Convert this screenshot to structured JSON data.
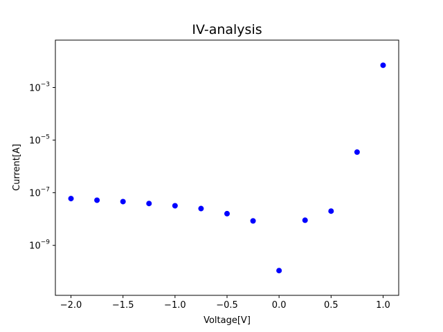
{
  "chart_data": {
    "type": "scatter",
    "title": "IV-analysis",
    "xlabel": "Voltage[V]",
    "ylabel": "Current[A]",
    "xlim": [
      -2.15,
      1.15
    ],
    "ylim_log10": [
      -10.9,
      -1.2
    ],
    "yscale": "log",
    "grid": false,
    "marker_color": "#0000ff",
    "x_ticks": [
      "-2.0",
      "-1.5",
      "-1.0",
      "-0.5",
      "0.0",
      "0.5",
      "1.0"
    ],
    "x_tick_values": [
      -2.0,
      -1.5,
      -1.0,
      -0.5,
      0.0,
      0.5,
      1.0
    ],
    "y_tick_exponents": [
      -9,
      -7,
      -5,
      -3
    ],
    "y_tick_base": "10",
    "series": [
      {
        "x": [
          -2.0,
          -1.75,
          -1.5,
          -1.25,
          -1.0,
          -0.75,
          -0.5,
          -0.25,
          0.0,
          0.25,
          0.5,
          0.75,
          1.0
        ],
        "y": [
          6e-08,
          5.2e-08,
          4.6e-08,
          3.9e-08,
          3.2e-08,
          2.5e-08,
          1.6e-08,
          8.5e-09,
          1.1e-10,
          9e-09,
          2e-08,
          3.5e-06,
          0.007
        ]
      }
    ]
  }
}
